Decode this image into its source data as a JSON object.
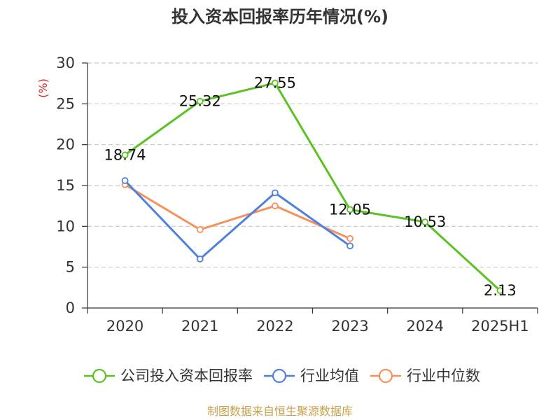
{
  "chart_data": {
    "type": "line",
    "title": "投入资本回报率历年情况(%)",
    "ylabel": "(%)",
    "xlabel": "",
    "categories": [
      "2020",
      "2021",
      "2022",
      "2023",
      "2024",
      "2025H1"
    ],
    "ylim": [
      0,
      30
    ],
    "yticks": [
      0,
      5,
      10,
      15,
      20,
      25,
      30
    ],
    "grid": true,
    "legend_position": "bottom",
    "series": [
      {
        "name": "公司投入资本回报率",
        "color": "#5cc124",
        "values": [
          18.74,
          25.32,
          27.55,
          12.05,
          10.53,
          2.13
        ],
        "show_labels": true
      },
      {
        "name": "行业均值",
        "color": "#4f80dc",
        "values": [
          15.6,
          6.0,
          14.1,
          7.6,
          null,
          null
        ],
        "show_labels": false
      },
      {
        "name": "行业中位数",
        "color": "#f7915c",
        "values": [
          15.1,
          9.6,
          12.5,
          8.5,
          null,
          null
        ],
        "show_labels": false
      }
    ]
  },
  "source_text": "制图数据来自恒生聚源数据库"
}
